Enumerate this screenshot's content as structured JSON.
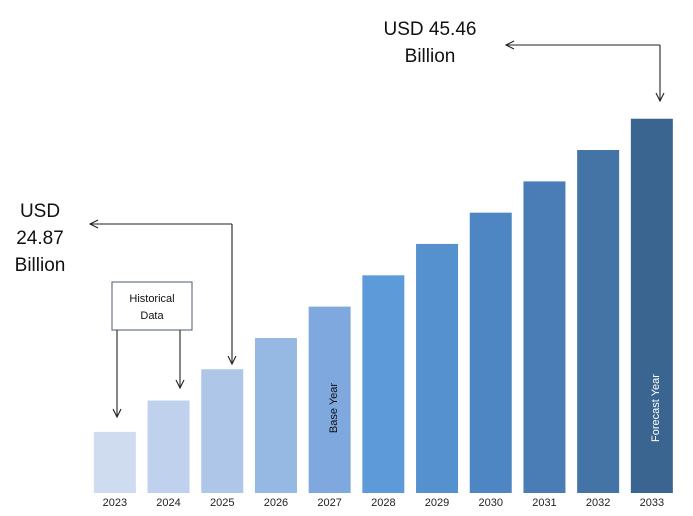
{
  "chart_data": {
    "type": "bar",
    "categories": [
      "2023",
      "2024",
      "2025",
      "2026",
      "2027",
      "2028",
      "2029",
      "2030",
      "2031",
      "2032",
      "2033"
    ],
    "values": [
      19.72,
      22.3,
      24.87,
      27.44,
      30.02,
      32.59,
      35.17,
      37.74,
      40.31,
      42.89,
      45.46
    ],
    "colors": [
      "#cfdbee",
      "#bfd1ec",
      "#aec6e8",
      "#96b9e3",
      "#7fa9de",
      "#5c9ad9",
      "#5590cf",
      "#4e86c3",
      "#4a7db5",
      "#4473a6",
      "#3b6591"
    ],
    "ylim": [
      14.7,
      47
    ],
    "annotations": [
      {
        "lines": [
          "USD",
          "24.87",
          "Billion"
        ]
      },
      {
        "lines": [
          "USD 45.46",
          "Billion"
        ]
      }
    ],
    "historical_label": [
      "Historical",
      "Data"
    ],
    "base_year_label": "Base Year",
    "forecast_year_label": "Forecast Year"
  }
}
